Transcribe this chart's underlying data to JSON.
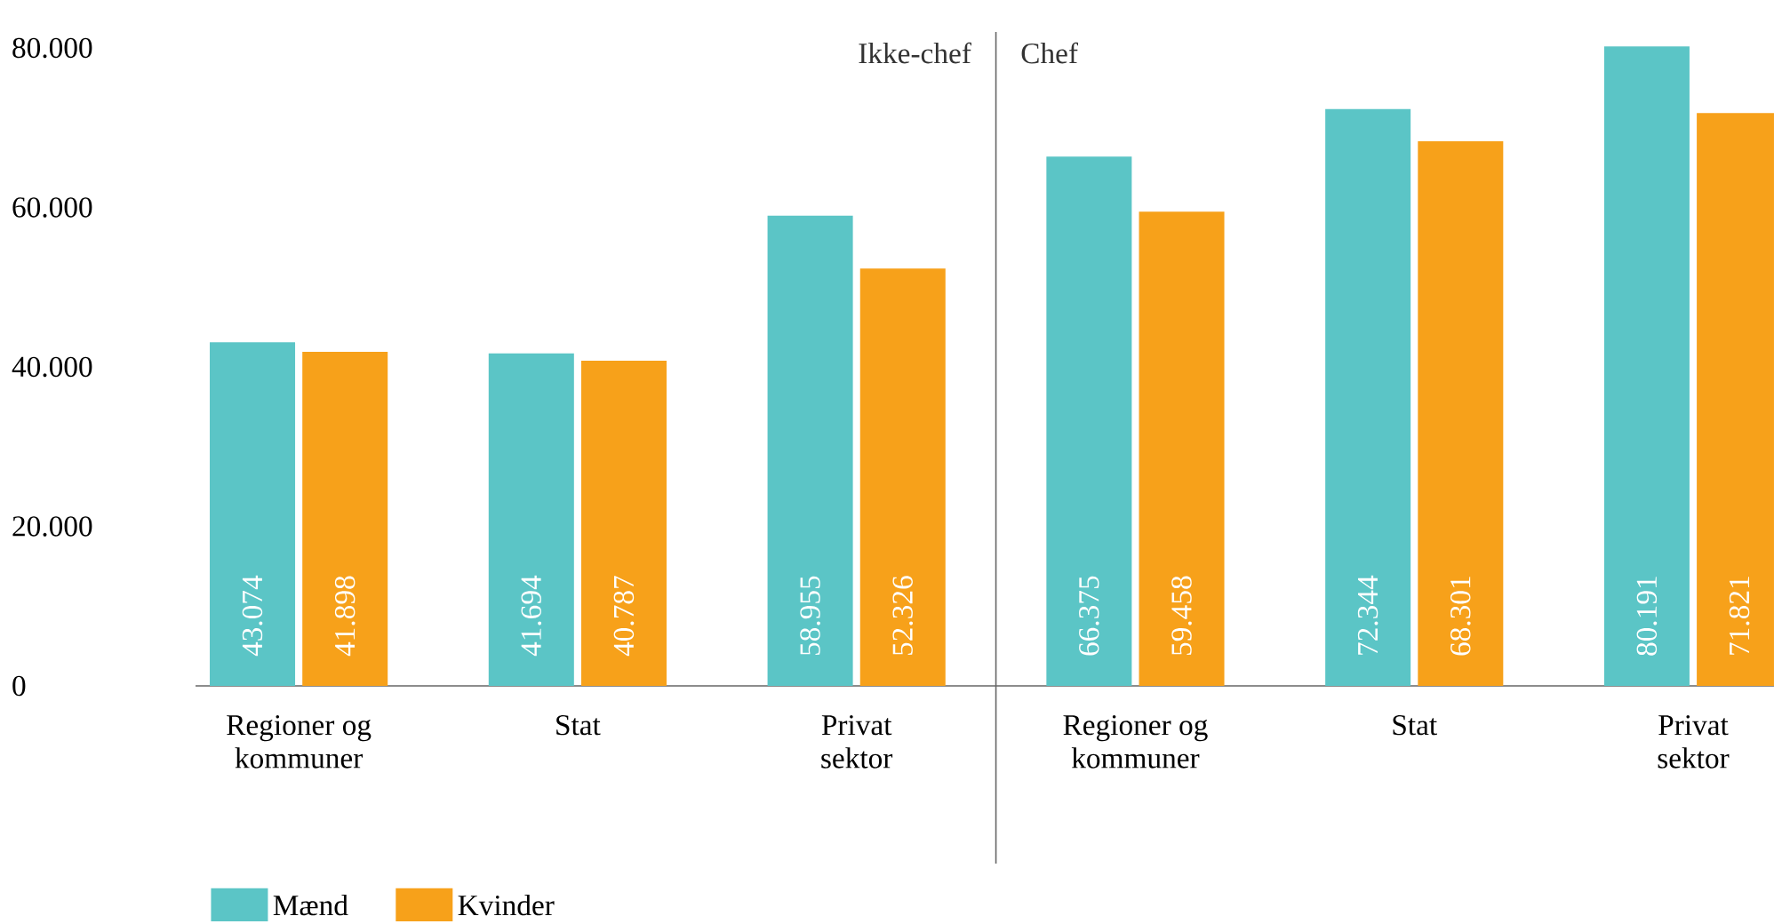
{
  "chart_data": {
    "type": "bar",
    "categories": [
      "Regioner og kommuner",
      "Stat",
      "Privat sektor",
      "Regioner og kommuner",
      "Stat",
      "Privat sektor"
    ],
    "series": [
      {
        "name": "Mænd",
        "color": "#5bc5c6",
        "values": [
          43074,
          41694,
          58955,
          66375,
          72344,
          80191
        ],
        "value_labels": [
          "43.074",
          "41.694",
          "58.955",
          "66.375",
          "72.344",
          "80.191"
        ]
      },
      {
        "name": "Kvinder",
        "color": "#f7a11a",
        "values": [
          41898,
          40787,
          52326,
          59458,
          68301,
          71821
        ],
        "value_labels": [
          "41.898",
          "40.787",
          "52.326",
          "59.458",
          "68.301",
          "71.821"
        ]
      }
    ],
    "ylim": [
      0,
      82000
    ],
    "yticks": [
      0,
      {
        "value": 20000,
        "label": "20.000"
      },
      {
        "value": 40000,
        "label": "40.000"
      },
      {
        "value": 60000,
        "label": "60.000"
      },
      {
        "value": 80000,
        "label": "80.000"
      }
    ],
    "annotations": [
      "Ikke-chef",
      "Chef"
    ],
    "grid": false,
    "legend": "bottom left"
  }
}
